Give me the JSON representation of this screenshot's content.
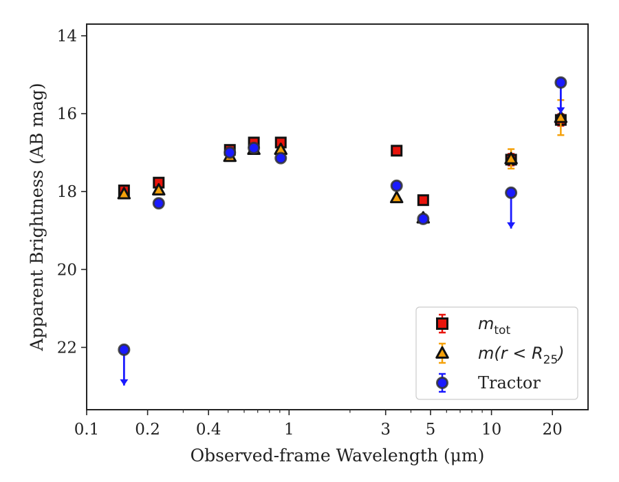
{
  "chart_data": {
    "type": "scatter",
    "xlabel": "Observed-frame Wavelength (μm)",
    "ylabel": "Apparent Brightness (AB mag)",
    "x_scale": "log",
    "xlim": [
      0.1,
      30
    ],
    "ylim": [
      23.6,
      13.7
    ],
    "y_inverted": true,
    "x_ticks": [
      0.1,
      0.2,
      0.4,
      1,
      3,
      5,
      10,
      20
    ],
    "x_tick_labels": [
      "0.1",
      "0.2",
      "0.4",
      "1",
      "3",
      "5",
      "10",
      "20"
    ],
    "y_ticks": [
      14,
      16,
      18,
      20,
      22
    ],
    "y_tick_labels": [
      "14",
      "16",
      "18",
      "20",
      "22"
    ],
    "grid": false,
    "legend_position": "lower-right",
    "series": [
      {
        "name": "m_tot",
        "label_main": "m",
        "label_sub": "tot",
        "marker": "square",
        "color": "#e8140c",
        "edge_color": "#111111",
        "points": [
          {
            "x": 0.153,
            "y": 17.97
          },
          {
            "x": 0.227,
            "y": 17.77
          },
          {
            "x": 0.51,
            "y": 16.93
          },
          {
            "x": 0.67,
            "y": 16.74
          },
          {
            "x": 0.91,
            "y": 16.74
          },
          {
            "x": 3.4,
            "y": 16.95
          },
          {
            "x": 4.6,
            "y": 18.22
          },
          {
            "x": 12.5,
            "y": 17.18,
            "err": 0.15
          },
          {
            "x": 22.0,
            "y": 16.16,
            "err": 0.15
          }
        ]
      },
      {
        "name": "m(r < R25)",
        "label_main": "m(r < R",
        "label_sub": "25",
        "label_end": ")",
        "marker": "triangle",
        "color": "#f5a10a",
        "edge_color": "#111111",
        "points": [
          {
            "x": 0.153,
            "y": 18.06
          },
          {
            "x": 0.227,
            "y": 17.96
          },
          {
            "x": 0.51,
            "y": 17.1
          },
          {
            "x": 0.67,
            "y": 16.92
          },
          {
            "x": 0.91,
            "y": 16.92
          },
          {
            "x": 3.4,
            "y": 18.16
          },
          {
            "x": 4.6,
            "y": 18.68
          },
          {
            "x": 12.5,
            "y": 17.16,
            "err": 0.25
          },
          {
            "x": 22.0,
            "y": 16.1,
            "err": 0.45
          }
        ]
      },
      {
        "name": "Tractor",
        "marker": "circle",
        "color": "#1a1aff",
        "edge_color": "#333333",
        "points": [
          {
            "x": 0.153,
            "y": 22.06,
            "upper_limit": true
          },
          {
            "x": 0.227,
            "y": 18.3
          },
          {
            "x": 0.51,
            "y": 17.0
          },
          {
            "x": 0.67,
            "y": 16.88
          },
          {
            "x": 0.91,
            "y": 17.14
          },
          {
            "x": 3.4,
            "y": 17.85
          },
          {
            "x": 4.6,
            "y": 18.7
          },
          {
            "x": 12.5,
            "y": 18.03,
            "upper_limit": true
          },
          {
            "x": 22.0,
            "y": 15.2,
            "upper_limit": true,
            "limit_down": true
          }
        ]
      }
    ]
  }
}
